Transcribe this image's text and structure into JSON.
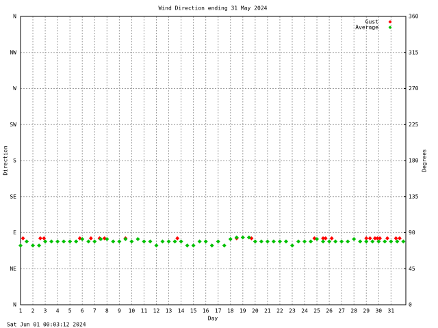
{
  "chart_data": {
    "type": "scatter",
    "title": "Wind Direction ending 31 May 2024",
    "x_label": "Day",
    "y_label": "Direction",
    "y2_label": "Degrees",
    "footer": "Sat Jun 01 00:03:12 2024",
    "xlim": [
      1,
      32.2
    ],
    "xticks": [
      1,
      2,
      3,
      4,
      5,
      6,
      7,
      8,
      9,
      10,
      11,
      12,
      13,
      14,
      15,
      16,
      17,
      18,
      19,
      20,
      21,
      22,
      23,
      24,
      25,
      26,
      27,
      28,
      29,
      30,
      31
    ],
    "ylim": [
      0,
      360
    ],
    "yticks": [
      {
        "value": 0,
        "label": "N"
      },
      {
        "value": 45,
        "label": "NE"
      },
      {
        "value": 90,
        "label": "E"
      },
      {
        "value": 135,
        "label": "SE"
      },
      {
        "value": 180,
        "label": "S"
      },
      {
        "value": 225,
        "label": "SW"
      },
      {
        "value": 270,
        "label": "W"
      },
      {
        "value": 315,
        "label": "NW"
      },
      {
        "value": 360,
        "label": "N"
      }
    ],
    "y2lim": [
      0,
      360
    ],
    "y2ticks": [
      0,
      45,
      90,
      135,
      180,
      225,
      270,
      315,
      360
    ],
    "grid": true,
    "legend": "upper right",
    "series": [
      {
        "name": "Gust",
        "color": "#ff0000",
        "x": [
          1.2,
          2.6,
          2.9,
          5.8,
          6.7,
          7.4,
          7.8,
          9.5,
          13.7,
          18.5,
          19.7,
          24.8,
          25.5,
          25.7,
          26.2,
          29,
          29.3,
          29.7,
          29.9,
          30.1,
          30.7,
          31.4,
          31.7
        ],
        "values": [
          83,
          83,
          83,
          83,
          83,
          83,
          83,
          83,
          83,
          83,
          83,
          83,
          83,
          83,
          83,
          83,
          83,
          83,
          83,
          83,
          83,
          83,
          83
        ]
      },
      {
        "name": "Average",
        "color": "#00c000",
        "x": [
          1,
          1.5,
          2,
          2.5,
          3,
          3.5,
          4,
          4.5,
          5,
          5.5,
          6,
          6.5,
          7,
          7.5,
          8,
          8.5,
          9,
          9.5,
          10,
          10.5,
          11,
          11.5,
          12,
          12.5,
          13,
          13.5,
          14,
          14.5,
          15,
          15.5,
          16,
          16.5,
          17,
          17.5,
          18,
          18.5,
          19,
          19.5,
          20,
          20.5,
          21,
          21.5,
          22,
          22.5,
          23,
          23.5,
          24,
          24.5,
          25,
          25.5,
          26,
          26.5,
          27,
          27.5,
          28,
          28.5,
          29,
          29.5,
          30,
          30.5,
          31,
          31.5,
          32
        ],
        "values": [
          74,
          79,
          74,
          74,
          79,
          79,
          79,
          79,
          79,
          79,
          82,
          79,
          79,
          82,
          82,
          79,
          79,
          82,
          79,
          82,
          79,
          79,
          74,
          79,
          79,
          79,
          79,
          74,
          74,
          79,
          79,
          74,
          79,
          74,
          82,
          84,
          84,
          84,
          79,
          79,
          79,
          79,
          79,
          79,
          74,
          79,
          79,
          79,
          82,
          79,
          79,
          79,
          79,
          79,
          82,
          79,
          79,
          79,
          79,
          79,
          79,
          79,
          79
        ]
      }
    ]
  }
}
